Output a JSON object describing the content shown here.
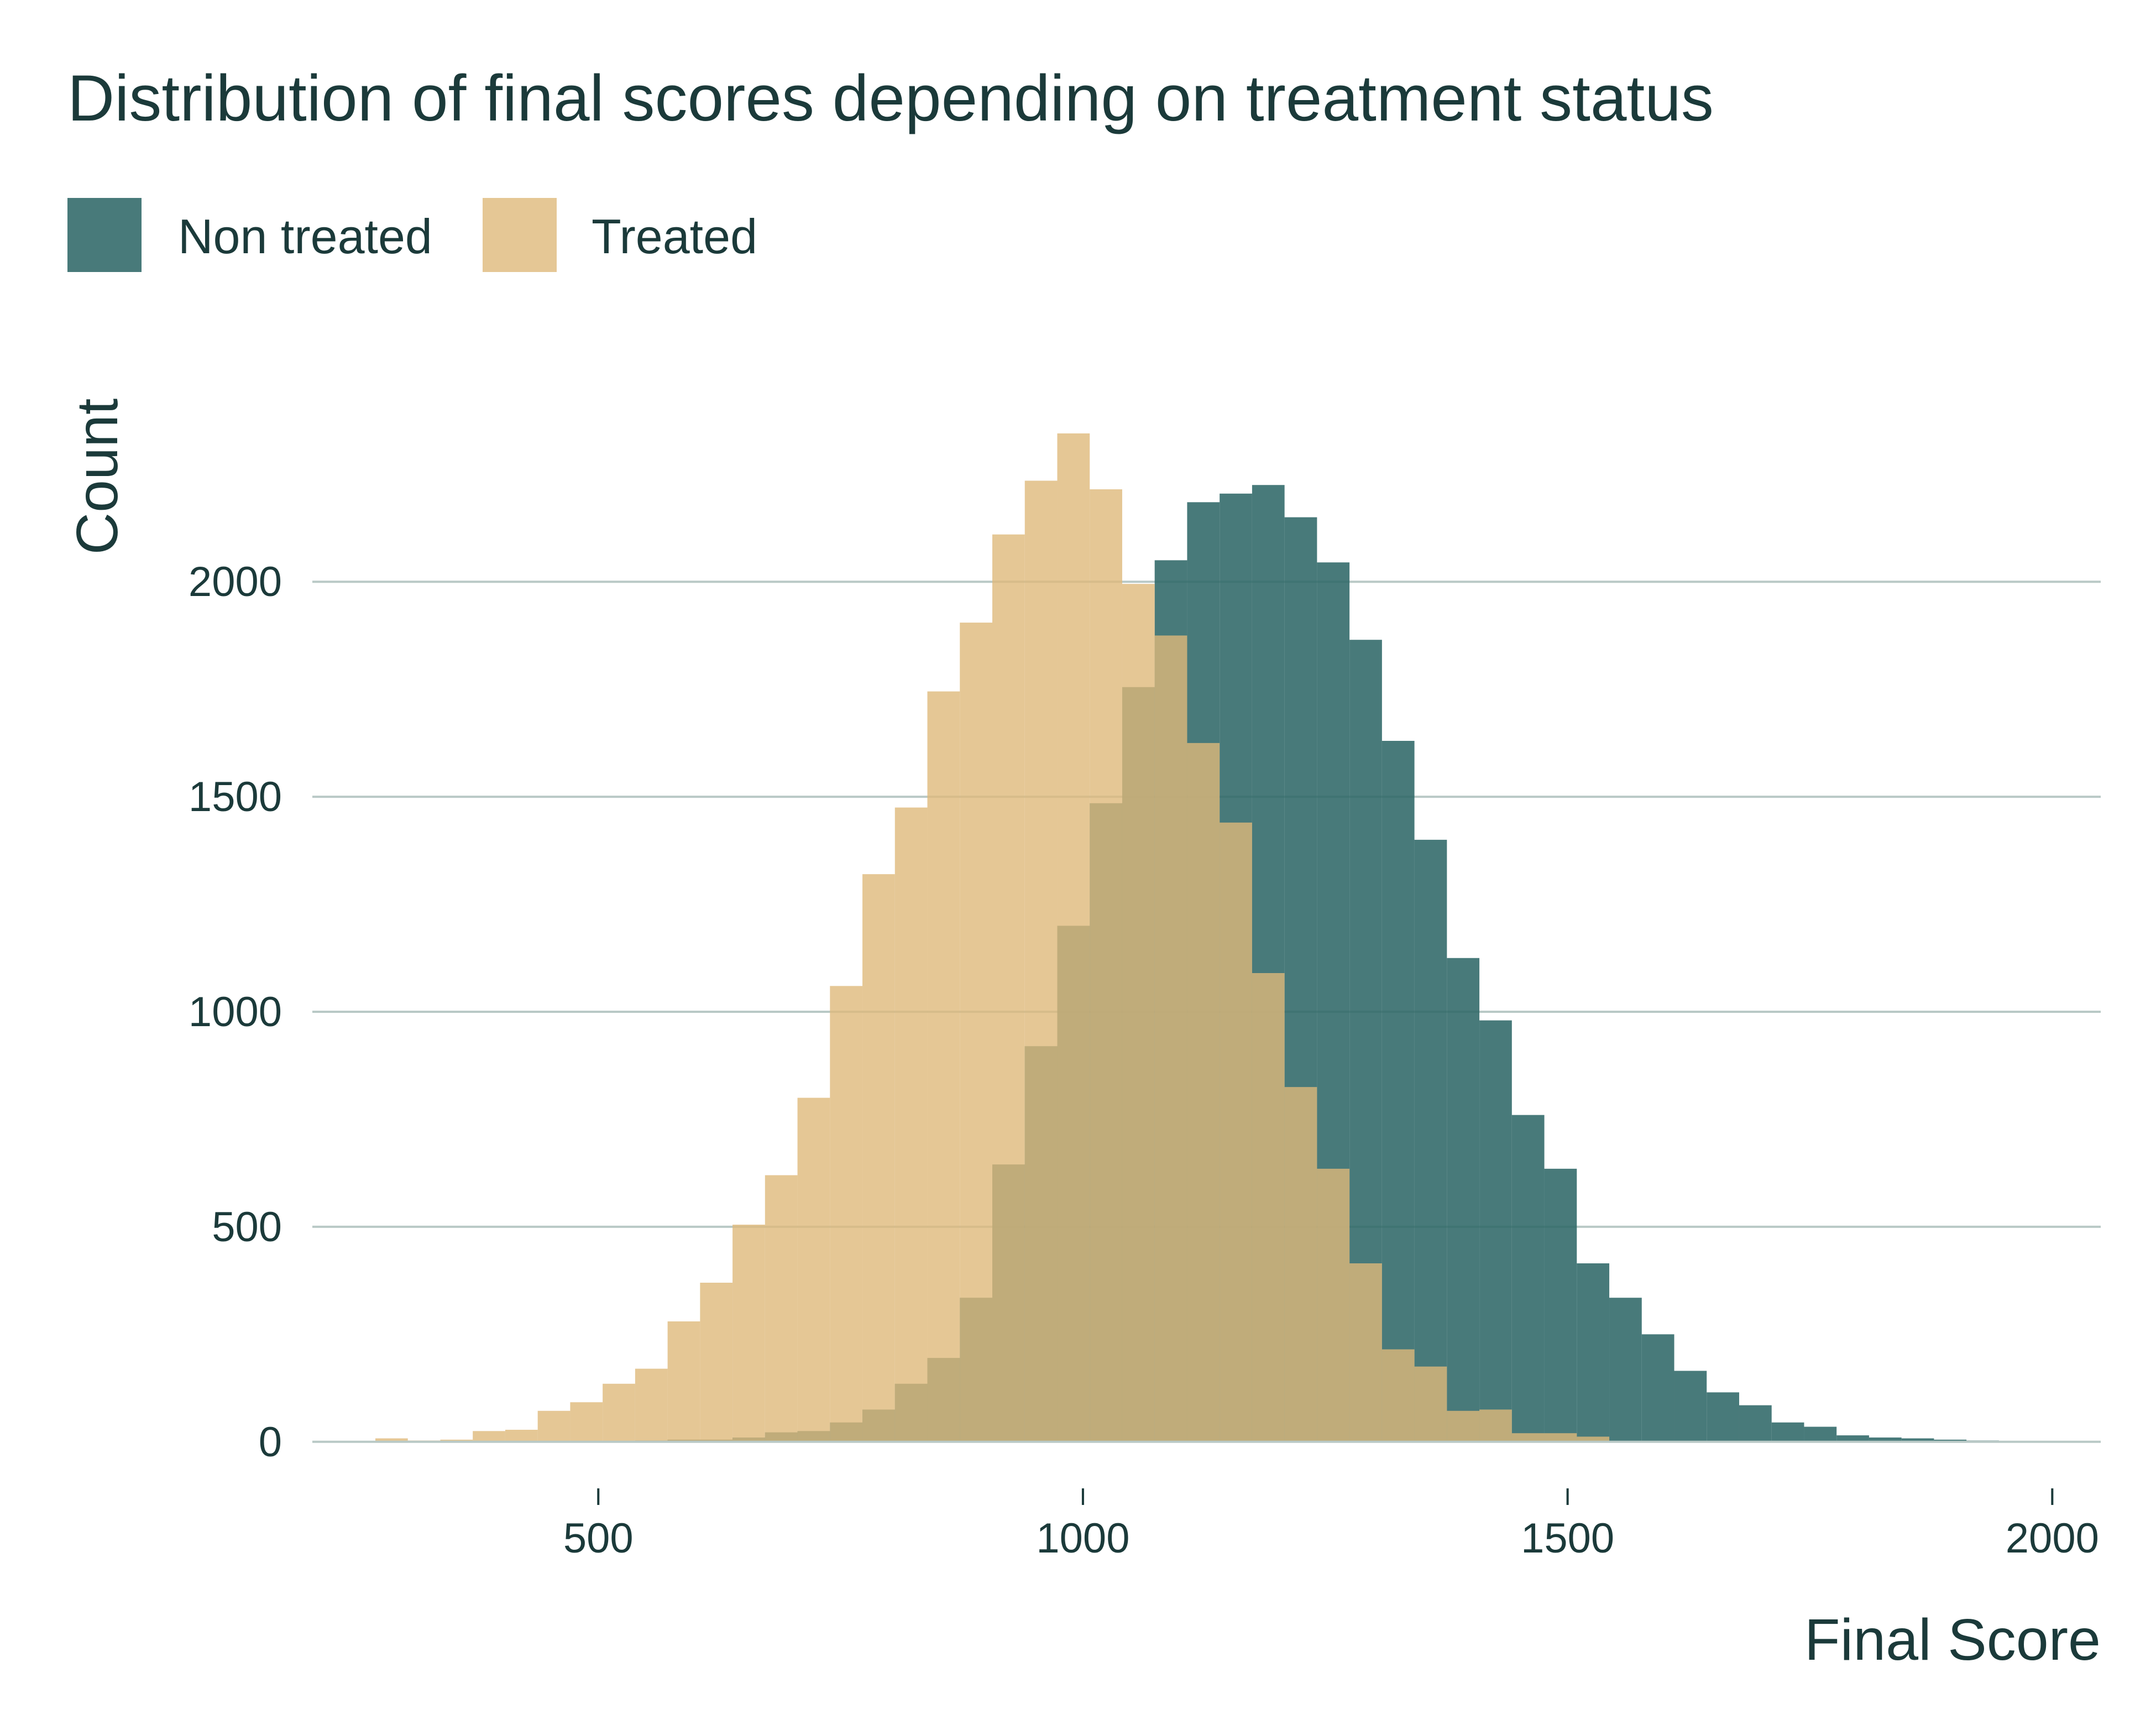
{
  "chart_data": {
    "type": "histogram",
    "title": "Distribution of final scores depending on treatment status",
    "xlabel": "Final Score",
    "ylabel": "Count",
    "xlim": [
      205,
      2050
    ],
    "ylim": [
      -80,
      2530
    ],
    "x_ticks": [
      500,
      1000,
      1500,
      2000
    ],
    "x_tick_labels": [
      "500",
      "1000",
      "1500",
      "2000"
    ],
    "y_ticks": [
      0,
      500,
      1000,
      1500,
      2000
    ],
    "y_tick_labels": [
      "0",
      "500",
      "1000",
      "1500",
      "2000"
    ],
    "grid": "horizontal",
    "legend_position": "top-left",
    "bin_width": 33.5,
    "bin_start": 270,
    "series": [
      {
        "name": "Non treated",
        "color": "#2f6868",
        "opacity": 0.88,
        "values": [
          0,
          0,
          0,
          0,
          0,
          0,
          0,
          0,
          3,
          5,
          5,
          10,
          22,
          25,
          45,
          75,
          135,
          195,
          335,
          645,
          920,
          1200,
          1485,
          1755,
          2050,
          2185,
          2205,
          2225,
          2150,
          2045,
          1865,
          1630,
          1400,
          1125,
          980,
          760,
          635,
          415,
          335,
          250,
          165,
          115,
          85,
          45,
          35,
          15,
          10,
          8,
          5,
          3,
          2,
          1,
          0
        ]
      },
      {
        "name": "Treated",
        "color": "#dfb97a",
        "opacity": 0.8,
        "values": [
          8,
          3,
          5,
          25,
          28,
          72,
          92,
          135,
          170,
          280,
          370,
          505,
          620,
          800,
          1060,
          1320,
          1475,
          1745,
          1905,
          2110,
          2235,
          2345,
          2215,
          1995,
          1875,
          1625,
          1440,
          1090,
          825,
          635,
          415,
          215,
          175,
          72,
          75,
          20,
          20,
          12,
          0,
          0,
          0,
          0,
          0,
          0,
          0,
          0,
          0,
          0,
          0,
          0,
          0,
          0,
          0
        ]
      }
    ]
  }
}
